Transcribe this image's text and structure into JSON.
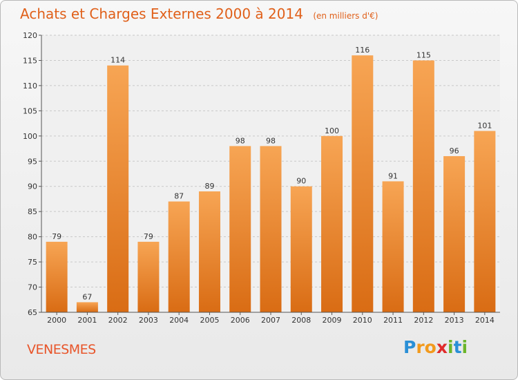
{
  "header": {
    "title": "Achats et Charges Externes 2000 à 2014",
    "unit": "(en milliers d'€)"
  },
  "commune": "VENESMES",
  "logo": {
    "letters": [
      "P",
      "r",
      "o",
      "x",
      "i",
      "t",
      "i"
    ],
    "colors": [
      "#2a8fd6",
      "#f29a1d",
      "#f29a1d",
      "#e02b2b",
      "#6bb52a",
      "#2a8fd6",
      "#6bb52a"
    ]
  },
  "chart_data": {
    "type": "bar",
    "title": "Achats et Charges Externes 2000 à 2014",
    "xlabel": "",
    "ylabel": "",
    "categories": [
      "2000",
      "2001",
      "2002",
      "2003",
      "2004",
      "2005",
      "2006",
      "2007",
      "2008",
      "2009",
      "2010",
      "2011",
      "2012",
      "2013",
      "2014"
    ],
    "values": [
      79,
      67,
      114,
      79,
      87,
      89,
      98,
      98,
      90,
      100,
      116,
      91,
      115,
      96,
      101
    ],
    "ylim": [
      65,
      120
    ],
    "yticks": [
      65,
      70,
      75,
      80,
      85,
      90,
      95,
      100,
      105,
      110,
      115,
      120
    ],
    "grid": "horizontal-dashed",
    "colors": {
      "bar_top": "#f7a554",
      "bar_bottom": "#d96c14",
      "text": "#333333",
      "axis": "#555555"
    }
  }
}
